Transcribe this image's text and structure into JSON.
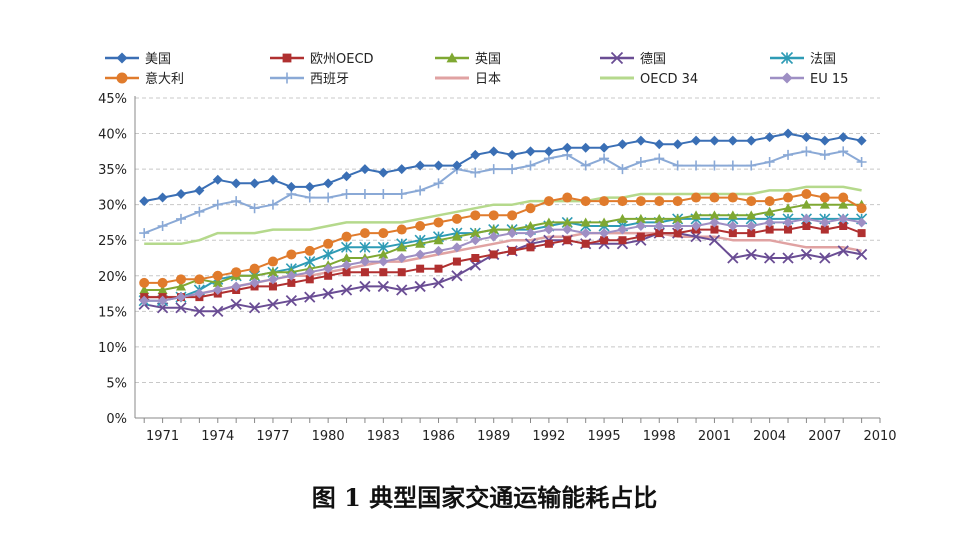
{
  "caption": "图 1 典型国家交通运输能耗占比",
  "chart_data": {
    "type": "line",
    "title": "",
    "xlabel": "",
    "ylabel": "",
    "x": [
      1970,
      1971,
      1972,
      1973,
      1974,
      1975,
      1976,
      1977,
      1978,
      1979,
      1980,
      1981,
      1982,
      1983,
      1984,
      1985,
      1986,
      1987,
      1988,
      1989,
      1990,
      1991,
      1992,
      1993,
      1994,
      1995,
      1996,
      1997,
      1998,
      1999,
      2000,
      2001,
      2002,
      2003,
      2004,
      2005,
      2006,
      2007,
      2008,
      2009
    ],
    "xlim": [
      1969.5,
      2010
    ],
    "ylim": [
      0,
      45
    ],
    "xticks": [
      "1971",
      "1974",
      "1977",
      "1980",
      "1983",
      "1986",
      "1989",
      "1992",
      "1995",
      "1998",
      "2001",
      "2004",
      "2007",
      "2010"
    ],
    "yticks": [
      "0%",
      "5%",
      "10%",
      "15%",
      "20%",
      "25%",
      "30%",
      "35%",
      "40%",
      "45%"
    ],
    "grid": "horizontal-dashed",
    "legend_position": "top",
    "series": [
      {
        "name": "美国",
        "color": "#3a6fb5",
        "marker": "diamond",
        "values": [
          30.5,
          31,
          31.5,
          32,
          33.5,
          33,
          33,
          33.5,
          32.5,
          32.5,
          33,
          34,
          35,
          34.5,
          35,
          35.5,
          35.5,
          35.5,
          37,
          37.5,
          37,
          37.5,
          37.5,
          38,
          38,
          38,
          38.5,
          39,
          38.5,
          38.5,
          39,
          39,
          39,
          39,
          39.5,
          40,
          39.5,
          39,
          39.5,
          39
        ]
      },
      {
        "name": "欧州OECD",
        "color": "#b03030",
        "marker": "square",
        "values": [
          17,
          17,
          17,
          17,
          17.5,
          18,
          18.5,
          18.5,
          19,
          19.5,
          20,
          20.5,
          20.5,
          20.5,
          20.5,
          21,
          21,
          22,
          22.5,
          23,
          23.5,
          24,
          24.5,
          25,
          24.5,
          25,
          25,
          25.5,
          26,
          26,
          26.5,
          26.5,
          26,
          26,
          26.5,
          26.5,
          27,
          26.5,
          27,
          26
        ]
      },
      {
        "name": "英国",
        "color": "#7fa832",
        "marker": "triangle",
        "values": [
          18,
          18,
          18.5,
          19.5,
          19,
          20,
          20,
          20.5,
          20.5,
          21,
          21.5,
          22.5,
          22.5,
          23,
          24,
          24.5,
          25,
          25.5,
          26,
          26.5,
          26.5,
          27,
          27.5,
          27.5,
          27.5,
          27.5,
          28,
          28,
          28,
          28,
          28.5,
          28.5,
          28.5,
          28.5,
          29,
          29.5,
          30,
          30,
          30,
          30
        ]
      },
      {
        "name": "德国",
        "color": "#6a4d94",
        "marker": "x",
        "values": [
          16,
          15.5,
          15.5,
          15,
          15,
          16,
          15.5,
          16,
          16.5,
          17,
          17.5,
          18,
          18.5,
          18.5,
          18,
          18.5,
          19,
          20,
          21.5,
          23,
          23.5,
          24.5,
          25,
          25,
          24.5,
          24.5,
          24.5,
          25,
          26,
          26,
          25.5,
          25,
          22.5,
          23,
          22.5,
          22.5,
          23,
          22.5,
          23.5,
          23
        ]
      },
      {
        "name": "法国",
        "color": "#2e9bb5",
        "marker": "asterisk",
        "values": [
          16.5,
          16.5,
          17,
          18,
          19.5,
          20,
          20,
          20.5,
          21,
          22,
          23,
          24,
          24,
          24,
          24.5,
          25,
          25.5,
          26,
          26,
          26.5,
          26.5,
          26.5,
          27,
          27.5,
          27,
          27,
          27,
          27.5,
          27.5,
          28,
          28,
          28,
          28,
          28,
          28,
          28,
          28,
          28,
          28,
          28
        ]
      },
      {
        "name": "意大利",
        "color": "#e07b2c",
        "marker": "circle",
        "values": [
          19,
          19,
          19.5,
          19.5,
          20,
          20.5,
          21,
          22,
          23,
          23.5,
          24.5,
          25.5,
          26,
          26,
          26.5,
          27,
          27.5,
          28,
          28.5,
          28.5,
          28.5,
          29.5,
          30.5,
          31,
          30.5,
          30.5,
          30.5,
          30.5,
          30.5,
          30.5,
          31,
          31,
          31,
          30.5,
          30.5,
          31,
          31.5,
          31,
          31,
          29.5
        ]
      },
      {
        "name": "西班牙",
        "color": "#8aa9d6",
        "marker": "plus",
        "values": [
          26,
          27,
          28,
          29,
          30,
          30.5,
          29.5,
          30,
          31.5,
          31,
          31,
          31.5,
          31.5,
          31.5,
          31.5,
          32,
          33,
          35,
          34.5,
          35,
          35,
          35.5,
          36.5,
          37,
          35.5,
          36.5,
          35,
          36,
          36.5,
          35.5,
          35.5,
          35.5,
          35.5,
          35.5,
          36,
          37,
          37.5,
          37,
          37.5,
          36
        ]
      },
      {
        "name": "日本",
        "color": "#e0a2a2",
        "marker": "none",
        "values": [
          17,
          17,
          17,
          17.5,
          18,
          18.5,
          19,
          19.5,
          20,
          20,
          20.5,
          21,
          21.5,
          22,
          22,
          22.5,
          23,
          23.5,
          24,
          24.5,
          25,
          25,
          25.5,
          25.5,
          26,
          26,
          26,
          26,
          26,
          25.5,
          25.5,
          25.5,
          25,
          25,
          25,
          24.5,
          24,
          24,
          24,
          23.5
        ]
      },
      {
        "name": "OECD 34",
        "color": "#b5d98c",
        "marker": "none",
        "values": [
          24.5,
          24.5,
          24.5,
          25,
          26,
          26,
          26,
          26.5,
          26.5,
          26.5,
          27,
          27.5,
          27.5,
          27.5,
          27.5,
          28,
          28.5,
          29,
          29.5,
          30,
          30,
          30.5,
          30.5,
          30.5,
          30.5,
          31,
          31,
          31.5,
          31.5,
          31.5,
          31.5,
          31.5,
          31.5,
          31.5,
          32,
          32,
          32.5,
          32.5,
          32.5,
          32
        ]
      },
      {
        "name": "EU 15",
        "color": "#9e8fc4",
        "marker": "diamond",
        "values": [
          16.5,
          16.5,
          17,
          17.5,
          18,
          18.5,
          19,
          19.5,
          20,
          20.5,
          21,
          21.5,
          22,
          22,
          22.5,
          23,
          23.5,
          24,
          25,
          25.5,
          26,
          26,
          26.5,
          26.5,
          26,
          26,
          26.5,
          27,
          27,
          27,
          27,
          27.5,
          27,
          27,
          27.5,
          27.5,
          28,
          27.5,
          28,
          27.5
        ]
      }
    ]
  }
}
